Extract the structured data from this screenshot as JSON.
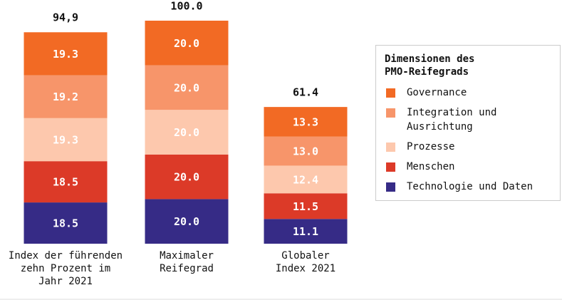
{
  "chart_data": {
    "type": "stacked_bar",
    "categories": [
      "Index der führenden\nzehn Prozent im\nJahr 2021",
      "Maximaler\nReifegrad",
      "Globaler\nIndex 2021"
    ],
    "totals": [
      94.9,
      100,
      61.4
    ],
    "total_labels": [
      "94,9",
      "100.0",
      "61.4"
    ],
    "legend_title": "Dimensionen des\nPMO-Reifegrads",
    "series": [
      {
        "name": "Governance",
        "color": "#f26a24",
        "values": [
          19.3,
          20,
          13.3
        ],
        "value_labels": [
          "19.3",
          "20.0",
          "13.3"
        ]
      },
      {
        "name": "Integration und\nAusrichtung",
        "color": "#f7956a",
        "values": [
          19.2,
          20,
          13
        ],
        "value_labels": [
          "19.2",
          "20.0",
          "13.0"
        ]
      },
      {
        "name": "Prozesse",
        "color": "#fdc8ad",
        "values": [
          19.3,
          20,
          12.4
        ],
        "value_labels": [
          "19.3",
          "20.0",
          "12.4"
        ]
      },
      {
        "name": "Menschen",
        "color": "#dc3a28",
        "values": [
          18.5,
          20,
          11.5
        ],
        "value_labels": [
          "18.5",
          "20.0",
          "11.5"
        ]
      },
      {
        "name": "Technologie und Daten",
        "color": "#362b86",
        "values": [
          18.5,
          20,
          11.1
        ],
        "value_labels": [
          "18.5",
          "20.0",
          "11.1"
        ]
      }
    ]
  }
}
